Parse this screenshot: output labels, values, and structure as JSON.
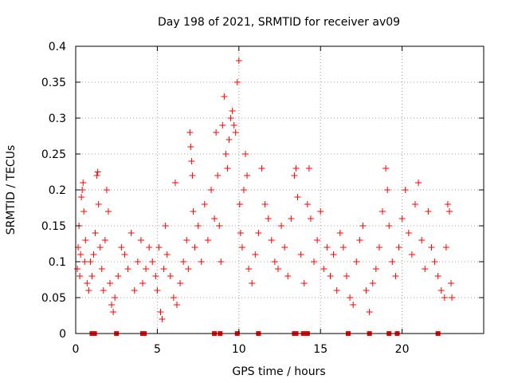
{
  "chart_data": {
    "type": "scatter",
    "title": "Day 198 of 2021, SRMTID for receiver av09",
    "xlabel": "GPS time / hours",
    "ylabel": "SRMTID / TECUs",
    "xlim": [
      0,
      25
    ],
    "ylim": [
      0,
      0.4
    ],
    "x_ticks": [
      0,
      5,
      10,
      15,
      20
    ],
    "x_tick_labels": [
      "0",
      "5",
      "10",
      "15",
      "20"
    ],
    "y_ticks": [
      0,
      0.05,
      0.1,
      0.15,
      0.2,
      0.25,
      0.3,
      0.35,
      0.4
    ],
    "y_tick_labels": [
      "0",
      "0.05",
      "0.1",
      "0.15",
      "0.2",
      "0.25",
      "0.3",
      "0.35",
      "0.4"
    ],
    "grid": true,
    "marker": "+",
    "color": "#ff0000",
    "series": [
      {
        "name": "SRMTID",
        "points": [
          [
            0.1,
            0.09
          ],
          [
            0.15,
            0.12
          ],
          [
            0.2,
            0.15
          ],
          [
            0.25,
            0.08
          ],
          [
            0.3,
            0.11
          ],
          [
            0.35,
            0.19
          ],
          [
            0.4,
            0.2
          ],
          [
            0.45,
            0.21
          ],
          [
            0.5,
            0.17
          ],
          [
            0.55,
            0.1
          ],
          [
            0.6,
            0.13
          ],
          [
            0.7,
            0.07
          ],
          [
            0.8,
            0.06
          ],
          [
            0.9,
            0.1
          ],
          [
            1.0,
            0.08
          ],
          [
            1.1,
            0.11
          ],
          [
            1.2,
            0.14
          ],
          [
            1.3,
            0.22
          ],
          [
            1.35,
            0.225
          ],
          [
            1.4,
            0.18
          ],
          [
            1.5,
            0.12
          ],
          [
            1.6,
            0.09
          ],
          [
            1.7,
            0.06
          ],
          [
            1.8,
            0.13
          ],
          [
            1.9,
            0.2
          ],
          [
            2.0,
            0.17
          ],
          [
            2.1,
            0.07
          ],
          [
            2.2,
            0.04
          ],
          [
            2.3,
            0.03
          ],
          [
            2.4,
            0.05
          ],
          [
            2.6,
            0.08
          ],
          [
            2.8,
            0.12
          ],
          [
            3.0,
            0.11
          ],
          [
            3.2,
            0.09
          ],
          [
            3.4,
            0.14
          ],
          [
            3.6,
            0.06
          ],
          [
            3.8,
            0.1
          ],
          [
            4.0,
            0.13
          ],
          [
            4.1,
            0.07
          ],
          [
            4.3,
            0.09
          ],
          [
            4.5,
            0.12
          ],
          [
            4.7,
            0.1
          ],
          [
            4.9,
            0.08
          ],
          [
            5.0,
            0.06
          ],
          [
            5.1,
            0.12
          ],
          [
            5.2,
            0.03
          ],
          [
            5.3,
            0.02
          ],
          [
            5.4,
            0.09
          ],
          [
            5.5,
            0.15
          ],
          [
            5.6,
            0.11
          ],
          [
            5.8,
            0.08
          ],
          [
            6.0,
            0.05
          ],
          [
            6.1,
            0.21
          ],
          [
            6.2,
            0.04
          ],
          [
            6.4,
            0.07
          ],
          [
            6.6,
            0.1
          ],
          [
            6.8,
            0.13
          ],
          [
            6.9,
            0.09
          ],
          [
            7.0,
            0.28
          ],
          [
            7.05,
            0.26
          ],
          [
            7.1,
            0.24
          ],
          [
            7.15,
            0.22
          ],
          [
            7.2,
            0.17
          ],
          [
            7.3,
            0.12
          ],
          [
            7.5,
            0.15
          ],
          [
            7.7,
            0.1
          ],
          [
            7.9,
            0.18
          ],
          [
            8.1,
            0.13
          ],
          [
            8.3,
            0.2
          ],
          [
            8.5,
            0.16
          ],
          [
            8.6,
            0.28
          ],
          [
            8.7,
            0.22
          ],
          [
            8.8,
            0.15
          ],
          [
            8.9,
            0.1
          ],
          [
            9.0,
            0.29
          ],
          [
            9.1,
            0.33
          ],
          [
            9.2,
            0.25
          ],
          [
            9.3,
            0.23
          ],
          [
            9.4,
            0.27
          ],
          [
            9.5,
            0.3
          ],
          [
            9.6,
            0.31
          ],
          [
            9.7,
            0.29
          ],
          [
            9.8,
            0.28
          ],
          [
            9.9,
            0.35
          ],
          [
            10.0,
            0.38
          ],
          [
            10.05,
            0.18
          ],
          [
            10.1,
            0.14
          ],
          [
            10.2,
            0.12
          ],
          [
            10.3,
            0.2
          ],
          [
            10.4,
            0.25
          ],
          [
            10.5,
            0.22
          ],
          [
            10.6,
            0.09
          ],
          [
            10.8,
            0.07
          ],
          [
            11.0,
            0.11
          ],
          [
            11.2,
            0.14
          ],
          [
            11.4,
            0.23
          ],
          [
            11.6,
            0.18
          ],
          [
            11.8,
            0.16
          ],
          [
            12.0,
            0.13
          ],
          [
            12.2,
            0.1
          ],
          [
            12.4,
            0.09
          ],
          [
            12.6,
            0.15
          ],
          [
            12.8,
            0.12
          ],
          [
            13.0,
            0.08
          ],
          [
            13.2,
            0.16
          ],
          [
            13.4,
            0.22
          ],
          [
            13.5,
            0.23
          ],
          [
            13.6,
            0.19
          ],
          [
            13.8,
            0.11
          ],
          [
            14.0,
            0.07
          ],
          [
            14.2,
            0.18
          ],
          [
            14.3,
            0.23
          ],
          [
            14.4,
            0.16
          ],
          [
            14.6,
            0.1
          ],
          [
            14.8,
            0.13
          ],
          [
            15.0,
            0.17
          ],
          [
            15.2,
            0.09
          ],
          [
            15.4,
            0.12
          ],
          [
            15.6,
            0.08
          ],
          [
            15.8,
            0.11
          ],
          [
            16.0,
            0.06
          ],
          [
            16.2,
            0.14
          ],
          [
            16.4,
            0.12
          ],
          [
            16.6,
            0.08
          ],
          [
            16.8,
            0.05
          ],
          [
            17.0,
            0.04
          ],
          [
            17.2,
            0.1
          ],
          [
            17.4,
            0.13
          ],
          [
            17.6,
            0.15
          ],
          [
            17.8,
            0.06
          ],
          [
            18.0,
            0.03
          ],
          [
            18.2,
            0.07
          ],
          [
            18.4,
            0.09
          ],
          [
            18.6,
            0.12
          ],
          [
            18.8,
            0.17
          ],
          [
            19.0,
            0.23
          ],
          [
            19.1,
            0.2
          ],
          [
            19.2,
            0.15
          ],
          [
            19.4,
            0.1
          ],
          [
            19.6,
            0.08
          ],
          [
            19.8,
            0.12
          ],
          [
            20.0,
            0.16
          ],
          [
            20.2,
            0.2
          ],
          [
            20.4,
            0.14
          ],
          [
            20.6,
            0.11
          ],
          [
            20.8,
            0.18
          ],
          [
            21.0,
            0.21
          ],
          [
            21.2,
            0.13
          ],
          [
            21.4,
            0.09
          ],
          [
            21.6,
            0.17
          ],
          [
            21.8,
            0.12
          ],
          [
            22.0,
            0.1
          ],
          [
            22.2,
            0.08
          ],
          [
            22.4,
            0.06
          ],
          [
            22.6,
            0.05
          ],
          [
            22.7,
            0.12
          ],
          [
            22.8,
            0.18
          ],
          [
            22.9,
            0.17
          ],
          [
            23.0,
            0.07
          ],
          [
            23.05,
            0.05
          ]
        ]
      }
    ],
    "baseline_marks": [
      1.0,
      1.15,
      2.5,
      4.1,
      4.2,
      8.5,
      8.85,
      9.9,
      11.2,
      13.4,
      13.5,
      13.95,
      14.1,
      14.2,
      16.7,
      18.0,
      19.2,
      19.7,
      22.2
    ]
  }
}
